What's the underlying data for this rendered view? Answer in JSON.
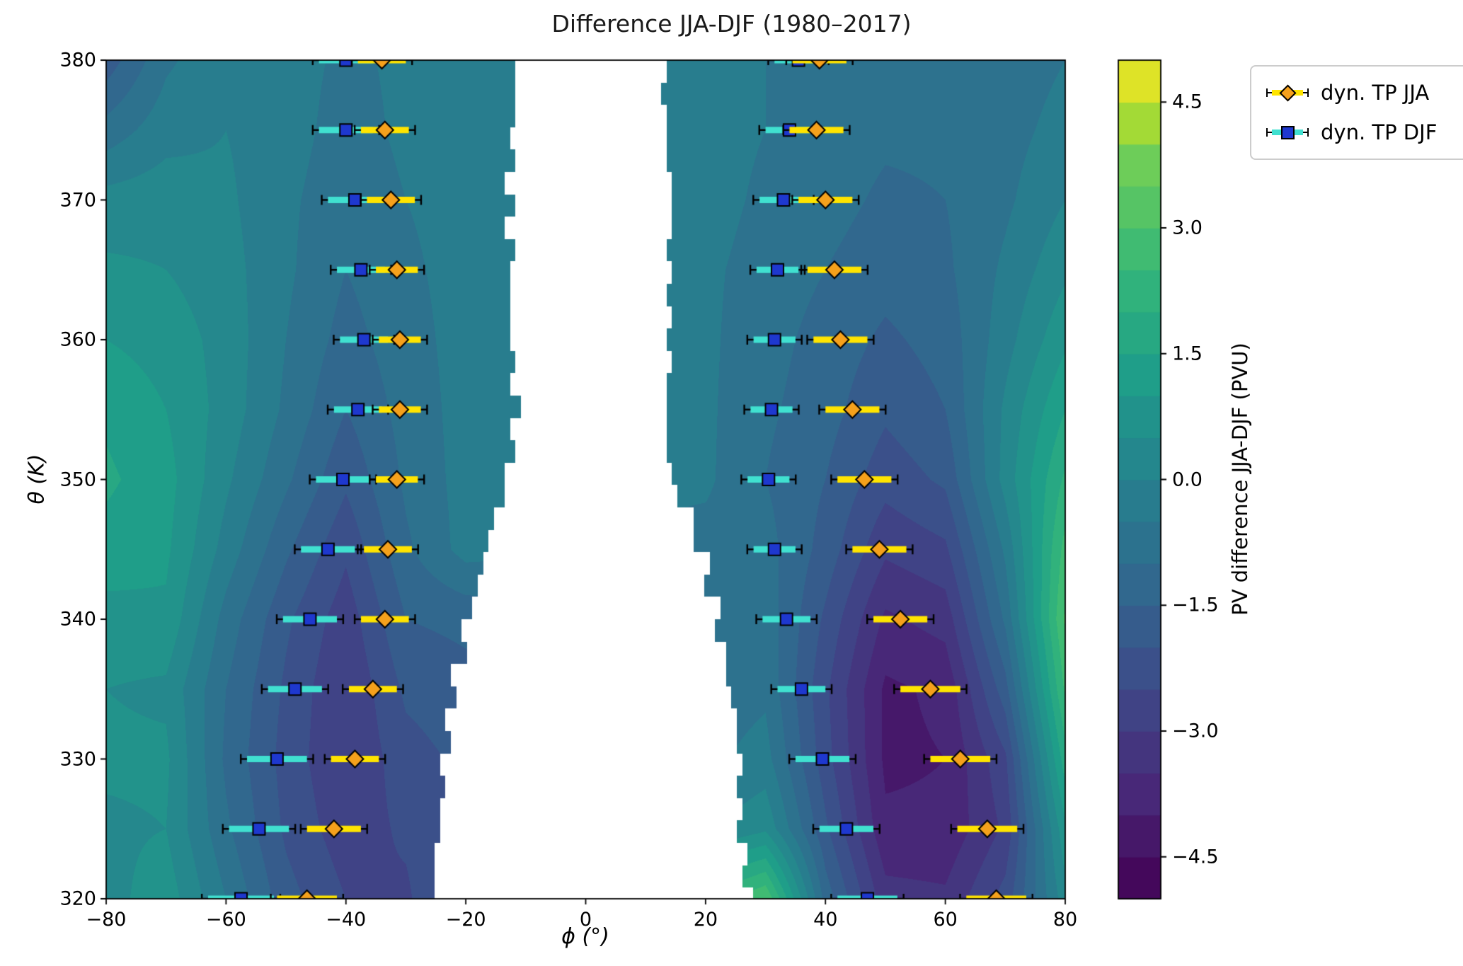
{
  "chart_data": {
    "type": "heatmap",
    "subtype": "filled-contour-with-errorbar-markers",
    "title": "Difference JJA-DJF (1980–2017)",
    "xlabel": "ϕ (°)",
    "ylabel": "θ (K)",
    "xlim": [
      -80,
      80
    ],
    "ylim": [
      320,
      380
    ],
    "grid": "off",
    "xticks": {
      "values": [
        -80,
        -60,
        -40,
        -20,
        0,
        20,
        40,
        60,
        80
      ],
      "labels": [
        "−80",
        "−60",
        "−40",
        "−20",
        "0",
        "20",
        "40",
        "60",
        "80"
      ]
    },
    "yticks": {
      "values": [
        320,
        330,
        340,
        350,
        360,
        370,
        380
      ],
      "labels": [
        "320",
        "330",
        "340",
        "350",
        "360",
        "370",
        "380"
      ]
    },
    "colorbar": {
      "label": "PV difference JJA-DJF (PVU)",
      "colormap": "viridis",
      "vmin": -5.0,
      "vmax": 5.0,
      "level_step": 0.5,
      "ticks": {
        "values": [
          4.5,
          3.0,
          1.5,
          0.0,
          -1.5,
          -3.0,
          -4.5
        ],
        "labels": [
          "4.5",
          "3.0",
          "1.5",
          "0.0",
          "−1.5",
          "−3.0",
          "−4.5"
        ]
      }
    },
    "field_note": "PV difference JJA-DJF (PVU), estimated on phi x theta grid; null = masked (white) tropical region",
    "field": {
      "phi": [
        -80,
        -70,
        -60,
        -50,
        -40,
        -30,
        -20,
        -10,
        0,
        10,
        20,
        30,
        40,
        50,
        60,
        70,
        80
      ],
      "theta": [
        320,
        325,
        330,
        335,
        340,
        345,
        350,
        355,
        360,
        365,
        370,
        375,
        380
      ],
      "values": [
        [
          0.3,
          0.8,
          -0.5,
          -1.8,
          -2.5,
          -2.6,
          null,
          null,
          null,
          null,
          null,
          3.0,
          -1.2,
          -3.3,
          -3.4,
          -2.3,
          0.3
        ],
        [
          0.4,
          0.5,
          -0.9,
          -2.1,
          -2.8,
          -2.4,
          null,
          null,
          null,
          null,
          null,
          0.4,
          -1.9,
          -3.9,
          -3.9,
          -2.9,
          0.9
        ],
        [
          0.6,
          0.6,
          -1.1,
          -2.2,
          -3.0,
          -2.2,
          null,
          null,
          null,
          null,
          null,
          -0.3,
          -2.3,
          -4.1,
          -4.0,
          -2.6,
          1.8
        ],
        [
          0.5,
          0.4,
          -1.0,
          -2.1,
          -3.0,
          -1.9,
          null,
          null,
          null,
          null,
          null,
          -0.6,
          -2.4,
          -4.1,
          -3.9,
          -1.7,
          2.6
        ],
        [
          0.8,
          0.9,
          -0.7,
          -1.9,
          -2.8,
          -1.5,
          null,
          null,
          null,
          null,
          null,
          -0.7,
          -2.1,
          -3.6,
          -3.3,
          -0.9,
          3.1
        ],
        [
          1.3,
          1.1,
          -0.2,
          -1.4,
          -2.4,
          -1.1,
          -0.3,
          null,
          null,
          null,
          null,
          -0.8,
          -1.7,
          -2.9,
          -2.6,
          -0.4,
          2.7
        ],
        [
          1.6,
          1.2,
          0.1,
          -0.9,
          -1.9,
          -0.9,
          -0.3,
          null,
          null,
          null,
          -0.4,
          -1.0,
          -1.5,
          -2.3,
          -1.9,
          0.2,
          2.1
        ],
        [
          1.4,
          1.0,
          0.3,
          -0.6,
          -1.5,
          -0.8,
          -0.3,
          null,
          null,
          null,
          -0.4,
          -0.9,
          -1.3,
          -1.9,
          -1.5,
          0.1,
          1.5
        ],
        [
          1.0,
          0.8,
          0.3,
          -0.5,
          -1.2,
          -0.7,
          -0.3,
          null,
          null,
          null,
          -0.4,
          -0.8,
          -1.2,
          -1.6,
          -1.3,
          -0.2,
          0.9
        ],
        [
          0.6,
          0.5,
          0.2,
          -0.4,
          -1.0,
          -0.6,
          -0.3,
          null,
          null,
          null,
          -0.4,
          -0.7,
          -1.0,
          -1.3,
          -1.1,
          -0.4,
          0.4
        ],
        [
          0.2,
          0.3,
          0.1,
          -0.4,
          -0.8,
          -0.5,
          -0.3,
          null,
          null,
          null,
          -0.3,
          -0.6,
          -0.8,
          -1.1,
          -1.0,
          -0.6,
          0.0
        ],
        [
          -0.8,
          -0.2,
          0.0,
          -0.3,
          -0.7,
          -0.4,
          -0.3,
          null,
          null,
          null,
          -0.3,
          -0.5,
          -0.7,
          -0.9,
          -0.9,
          -0.7,
          -0.3
        ],
        [
          -1.8,
          -0.6,
          -0.1,
          -0.3,
          -0.6,
          -0.4,
          -0.3,
          null,
          null,
          null,
          -0.3,
          -0.5,
          -0.6,
          -0.8,
          -0.9,
          -0.8,
          -0.5
        ]
      ]
    },
    "mask": {
      "theta": [
        320,
        325,
        330,
        335,
        340,
        345,
        350,
        355,
        360,
        365,
        370,
        375,
        380
      ],
      "left": [
        -26,
        -25,
        -24,
        -22,
        -20,
        -17,
        -13,
        -12,
        -13,
        -13,
        -12.5,
        -12,
        -12
      ],
      "right": [
        27,
        26,
        25,
        24,
        22,
        19,
        14,
        13,
        14,
        14,
        14,
        13,
        13
      ]
    },
    "tropopause_markers": {
      "theta_levels": [
        320,
        325,
        330,
        335,
        340,
        345,
        350,
        355,
        360,
        365,
        370,
        375,
        380
      ],
      "sh": {
        "djf": {
          "phi": [
            -57.5,
            -54.5,
            -51.5,
            -48.5,
            -46.0,
            -43.0,
            -40.5,
            -38.0,
            -37.0,
            -37.5,
            -38.5,
            -40.0,
            -40.0
          ],
          "err": [
            5.5,
            5.0,
            5.0,
            4.5,
            4.5,
            4.5,
            4.5,
            4.0,
            4.0,
            4.0,
            4.5,
            4.5,
            4.5
          ]
        },
        "jja": {
          "phi": [
            -46.5,
            -42.0,
            -38.5,
            -35.5,
            -33.5,
            -33.0,
            -31.5,
            -31.0,
            -31.0,
            -31.5,
            -32.5,
            -33.5,
            -34.0
          ],
          "err": [
            5.0,
            4.5,
            4.0,
            4.0,
            4.0,
            4.0,
            3.5,
            3.5,
            3.5,
            3.5,
            4.0,
            4.0,
            4.0
          ]
        }
      },
      "nh": {
        "djf": {
          "phi": [
            47.0,
            43.5,
            39.5,
            36.0,
            33.5,
            31.5,
            30.5,
            31.0,
            31.5,
            32.0,
            33.0,
            34.0,
            35.5
          ],
          "err": [
            5.0,
            4.5,
            4.5,
            4.0,
            4.0,
            3.5,
            3.5,
            3.5,
            3.5,
            3.5,
            4.0,
            4.0,
            4.0
          ]
        },
        "jja": {
          "phi": [
            68.5,
            67.0,
            62.5,
            57.5,
            52.5,
            49.0,
            46.5,
            44.5,
            42.5,
            41.5,
            40.0,
            38.5,
            39.0
          ],
          "err": [
            5.0,
            5.0,
            5.0,
            5.0,
            4.5,
            4.5,
            4.5,
            4.5,
            4.5,
            4.5,
            4.5,
            4.5,
            4.5
          ]
        }
      }
    },
    "legend": {
      "position": "upper right, outside axes",
      "items": [
        {
          "label": "dyn. TP JJA",
          "marker": "diamond",
          "marker_color": "#f5a11c",
          "band_color": "#ffe400"
        },
        {
          "label": "dyn. TP DJF",
          "marker": "square",
          "marker_color": "#1e38cf",
          "band_color": "#40e0d0"
        }
      ]
    },
    "colors": {
      "background": "#ffffff",
      "masked_region": "#ffffff",
      "axis": "#000000"
    }
  }
}
